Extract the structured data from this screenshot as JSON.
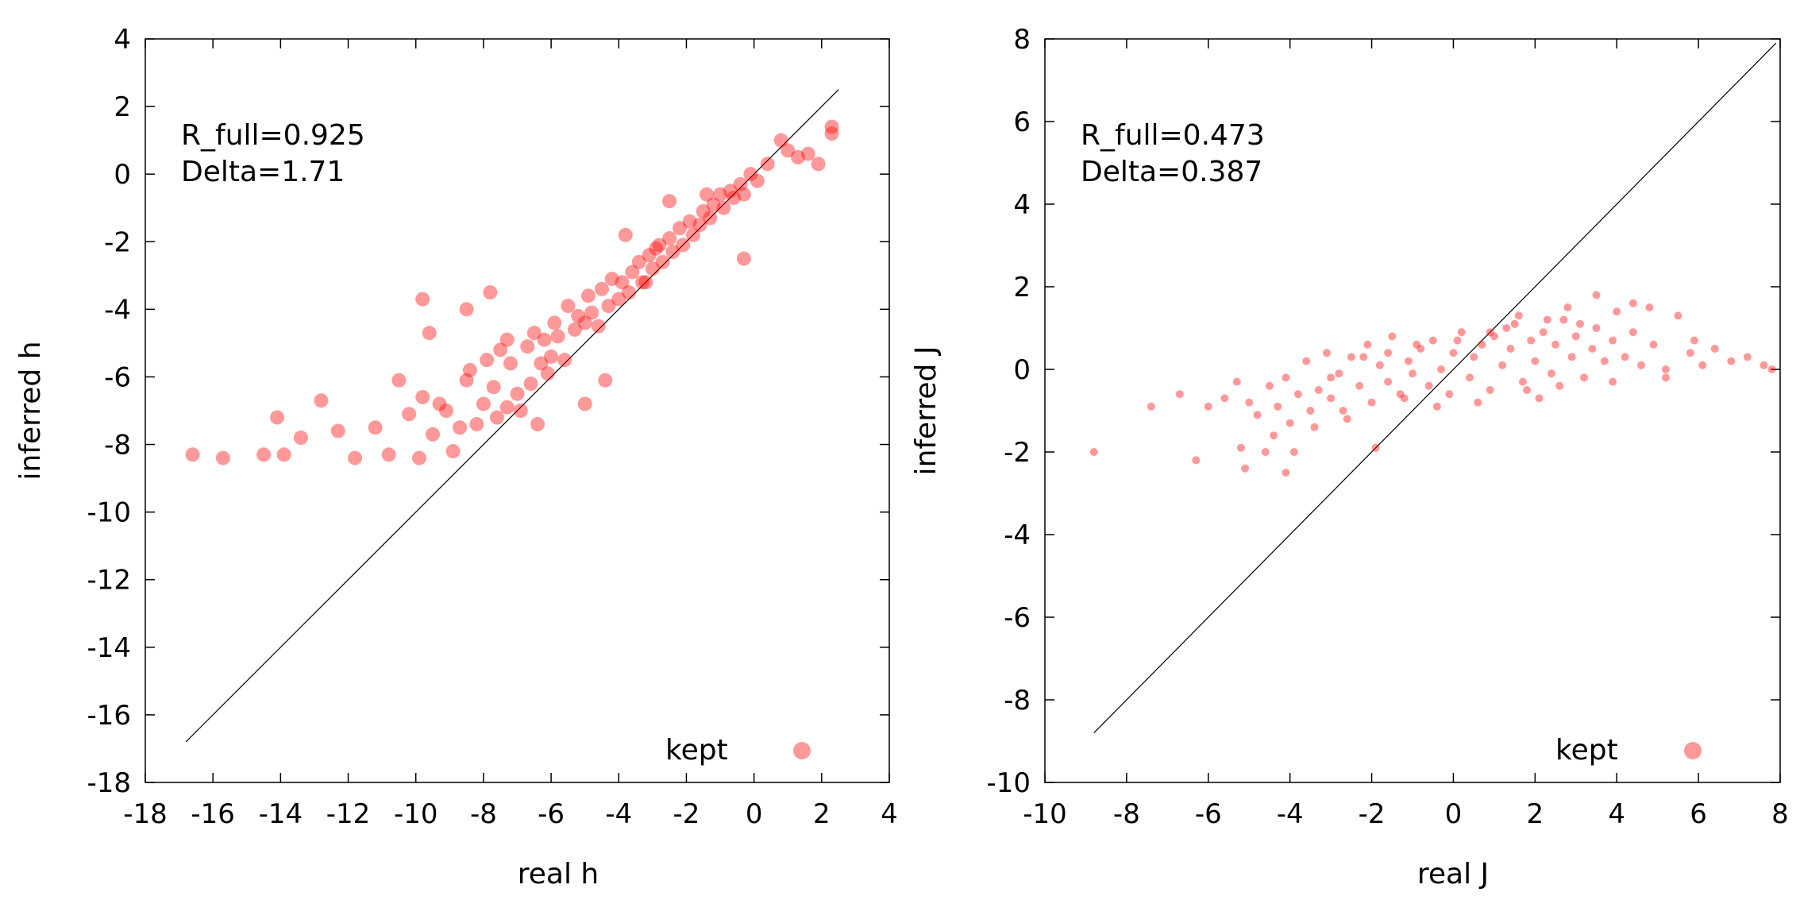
{
  "chart_data": [
    {
      "type": "scatter",
      "name": "h-panel",
      "xlabel": "real h",
      "ylabel": "inferred h",
      "xlim": [
        -18,
        4
      ],
      "ylim": [
        -18,
        4
      ],
      "xticks": [
        "-18",
        "-16",
        "-14",
        "-12",
        "-10",
        "-8",
        "-6",
        "-4",
        "-2",
        "0",
        "2",
        "4"
      ],
      "yticks": [
        "-18",
        "-16",
        "-14",
        "-12",
        "-10",
        "-8",
        "-6",
        "-4",
        "-2",
        "0",
        "2",
        "4"
      ],
      "annotations": [
        "R_full=0.925",
        "Delta=1.71"
      ],
      "legend": {
        "label": "kept",
        "position": "bottom-right",
        "color": "#ff0000"
      },
      "identity_line": [
        [
          -16.8,
          -16.8
        ],
        [
          2.5,
          2.5
        ]
      ],
      "series": [
        {
          "name": "kept",
          "color": "#ff0000",
          "x": [
            -16.6,
            -15.7,
            -14.5,
            -14.1,
            -13.9,
            -13.4,
            -12.8,
            -12.3,
            -11.8,
            -11.2,
            -10.8,
            -10.5,
            -10.2,
            -9.9,
            -9.8,
            -9.5,
            -9.3,
            -9.1,
            -8.9,
            -8.7,
            -8.5,
            -8.4,
            -8.2,
            -8.0,
            -7.9,
            -7.7,
            -7.6,
            -7.5,
            -7.3,
            -7.2,
            -7.0,
            -6.9,
            -6.7,
            -6.6,
            -6.5,
            -6.3,
            -6.2,
            -6.0,
            -5.9,
            -5.8,
            -5.6,
            -5.5,
            -5.3,
            -5.2,
            -5.0,
            -4.9,
            -4.8,
            -4.6,
            -4.5,
            -4.3,
            -4.2,
            -4.0,
            -3.9,
            -3.7,
            -3.6,
            -3.4,
            -3.3,
            -3.1,
            -3.0,
            -2.8,
            -2.7,
            -2.5,
            -2.4,
            -2.2,
            -2.1,
            -1.9,
            -1.8,
            -1.6,
            -1.5,
            -1.3,
            -1.2,
            -1.0,
            -0.9,
            -0.7,
            -0.6,
            -0.4,
            -0.3,
            -0.1,
            0.1,
            0.4,
            0.8,
            1.0,
            1.3,
            1.6,
            1.9,
            2.3,
            2.3,
            -9.8,
            -9.6,
            -7.8,
            -8.5,
            -6.4,
            -5.0,
            -2.5,
            -1.4,
            -0.3,
            -2.9,
            -3.8,
            -6.1,
            -7.3,
            -4.4,
            -3.2
          ],
          "y": [
            -8.3,
            -8.4,
            -8.3,
            -7.2,
            -8.3,
            -7.8,
            -6.7,
            -7.6,
            -8.4,
            -7.5,
            -8.3,
            -6.1,
            -7.1,
            -8.4,
            -6.6,
            -7.7,
            -6.8,
            -7.0,
            -8.2,
            -7.5,
            -6.1,
            -5.8,
            -7.4,
            -6.8,
            -5.5,
            -6.3,
            -7.2,
            -5.2,
            -6.9,
            -5.6,
            -6.5,
            -7.0,
            -5.1,
            -6.2,
            -4.7,
            -5.6,
            -4.9,
            -5.4,
            -4.4,
            -4.8,
            -5.5,
            -3.9,
            -4.6,
            -4.2,
            -4.4,
            -3.6,
            -4.1,
            -4.5,
            -3.4,
            -3.9,
            -3.1,
            -3.7,
            -3.2,
            -3.5,
            -2.9,
            -2.6,
            -3.2,
            -2.4,
            -2.8,
            -2.1,
            -2.6,
            -1.9,
            -2.3,
            -1.6,
            -2.1,
            -1.4,
            -1.8,
            -1.5,
            -1.1,
            -1.3,
            -0.9,
            -0.6,
            -1.0,
            -0.5,
            -0.7,
            -0.3,
            -0.6,
            0.0,
            -0.2,
            0.3,
            1.0,
            0.7,
            0.5,
            0.6,
            0.3,
            1.2,
            1.4,
            -3.7,
            -4.7,
            -3.5,
            -4.0,
            -7.4,
            -6.8,
            -0.8,
            -0.6,
            -2.5,
            -2.2,
            -1.8,
            -5.9,
            -4.9,
            -6.1,
            -3.2
          ]
        }
      ]
    },
    {
      "type": "scatter",
      "name": "j-panel",
      "xlabel": "real J",
      "ylabel": "inferred J",
      "xlim": [
        -10,
        8
      ],
      "ylim": [
        -10,
        8
      ],
      "xticks": [
        "-10",
        "-8",
        "-6",
        "-4",
        "-2",
        "0",
        "2",
        "4",
        "6",
        "8"
      ],
      "yticks": [
        "-10",
        "-8",
        "-6",
        "-4",
        "-2",
        "0",
        "2",
        "4",
        "6",
        "8"
      ],
      "annotations": [
        "R_full=0.473",
        "Delta=0.387"
      ],
      "legend": {
        "label": "kept",
        "position": "bottom-right",
        "color": "#ff0000"
      },
      "identity_line": [
        [
          -8.8,
          -8.8
        ],
        [
          7.9,
          7.9
        ]
      ],
      "series": [
        {
          "name": "kept",
          "color": "#ff0000",
          "x": [
            -8.8,
            -7.4,
            -6.7,
            -6.3,
            -6.0,
            -5.6,
            -5.3,
            -5.1,
            -5.0,
            -4.8,
            -4.6,
            -4.5,
            -4.3,
            -4.1,
            -4.0,
            -3.8,
            -3.6,
            -3.5,
            -3.3,
            -3.1,
            -3.0,
            -2.8,
            -2.6,
            -2.5,
            -2.3,
            -2.1,
            -2.0,
            -1.8,
            -1.6,
            -1.5,
            -1.3,
            -1.1,
            -1.0,
            -0.8,
            -0.6,
            -0.5,
            -0.3,
            -0.1,
            0.0,
            0.2,
            0.4,
            0.5,
            0.7,
            0.9,
            1.0,
            1.2,
            1.4,
            1.5,
            1.7,
            1.9,
            2.0,
            2.2,
            2.4,
            2.5,
            2.7,
            2.9,
            3.0,
            3.2,
            3.4,
            3.5,
            3.7,
            3.9,
            4.0,
            4.2,
            4.4,
            4.6,
            4.9,
            5.2,
            5.5,
            5.8,
            6.1,
            6.4,
            6.8,
            7.2,
            7.6,
            7.8,
            -4.1,
            -3.9,
            -5.2,
            -4.4,
            -1.9,
            3.5,
            4.8,
            5.9,
            2.8,
            1.6,
            -0.4,
            -2.7,
            0.6,
            2.1,
            -3.4,
            3.9,
            5.2,
            -1.2,
            0.9,
            1.8,
            2.6,
            3.1,
            -0.9,
            -2.2,
            4.4,
            -3.0,
            1.3,
            0.1,
            -1.6,
            2.3
          ],
          "y": [
            -2.0,
            -0.9,
            -0.6,
            -2.2,
            -0.9,
            -0.7,
            -0.3,
            -2.4,
            -0.8,
            -1.1,
            -2.0,
            -0.4,
            -0.9,
            -0.2,
            -1.3,
            -0.6,
            0.2,
            -1.0,
            -0.5,
            0.4,
            -0.7,
            -0.1,
            -1.2,
            0.3,
            -0.4,
            0.6,
            -0.8,
            0.1,
            -0.3,
            0.8,
            -0.6,
            0.2,
            -0.1,
            0.5,
            -0.4,
            0.7,
            0.0,
            -0.6,
            0.4,
            0.9,
            -0.2,
            0.3,
            0.6,
            -0.5,
            0.8,
            0.1,
            0.5,
            1.1,
            -0.3,
            0.7,
            0.2,
            0.9,
            -0.1,
            0.6,
            1.2,
            0.3,
            0.8,
            -0.2,
            0.5,
            1.0,
            0.2,
            0.7,
            1.4,
            0.3,
            0.9,
            0.1,
            0.6,
            0.0,
            1.3,
            0.4,
            0.1,
            0.5,
            0.2,
            0.3,
            0.1,
            0.0,
            -2.5,
            -2.0,
            -1.9,
            -1.6,
            -1.9,
            1.8,
            1.5,
            0.7,
            1.5,
            1.3,
            -0.9,
            -1.0,
            -0.8,
            -0.7,
            -1.4,
            -0.3,
            -0.2,
            -0.7,
            0.9,
            -0.5,
            -0.4,
            1.1,
            0.6,
            0.3,
            1.6,
            -0.2,
            1.0,
            0.7,
            0.4,
            1.2
          ]
        }
      ]
    }
  ]
}
